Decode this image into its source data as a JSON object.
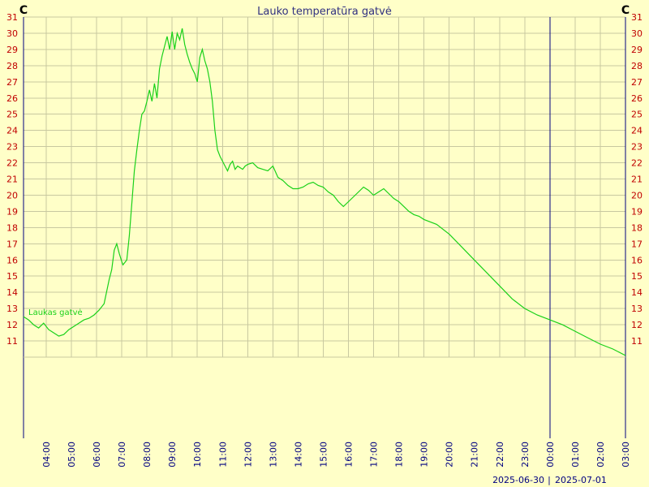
{
  "chart_data": {
    "type": "line",
    "title": "Lauko temperatūra gatvė",
    "ylabel_left": "C",
    "ylabel_right": "C",
    "xlabel": "",
    "ylim": [
      10,
      31
    ],
    "y_ticks": [
      11,
      12,
      13,
      14,
      15,
      16,
      17,
      18,
      19,
      20,
      21,
      22,
      23,
      24,
      25,
      26,
      27,
      28,
      29,
      30,
      31
    ],
    "x_range_hours": [
      3.1,
      27.0
    ],
    "x_ticks": [
      "04:00",
      "05:00",
      "06:00",
      "07:00",
      "08:00",
      "09:00",
      "10:00",
      "11:00",
      "12:00",
      "13:00",
      "14:00",
      "15:00",
      "16:00",
      "17:00",
      "18:00",
      "19:00",
      "20:00",
      "21:00",
      "22:00",
      "23:00",
      "00:00",
      "01:00",
      "02:00",
      "03:00"
    ],
    "dates": [
      "2025-06-30",
      "2025-07-01"
    ],
    "date_separator": "|",
    "day_boundary_hour": 24,
    "grid": true,
    "legend_placement": "left, inside plot",
    "colors": {
      "line": "#19d119",
      "background": "#ffffc8",
      "grid": "#c8c8a0",
      "axis": "#000080",
      "tick_labels": "#c00000"
    },
    "series": [
      {
        "name": "Laukas gatvė",
        "x": [
          3.1,
          3.3,
          3.5,
          3.7,
          3.9,
          4.1,
          4.3,
          4.5,
          4.7,
          4.9,
          5.1,
          5.3,
          5.5,
          5.7,
          5.9,
          6.1,
          6.3,
          6.5,
          6.6,
          6.7,
          6.8,
          6.9,
          7.0,
          7.05,
          7.1,
          7.2,
          7.3,
          7.4,
          7.5,
          7.6,
          7.7,
          7.8,
          7.9,
          8.0,
          8.1,
          8.2,
          8.3,
          8.4,
          8.5,
          8.6,
          8.7,
          8.8,
          8.9,
          9.0,
          9.1,
          9.2,
          9.3,
          9.4,
          9.5,
          9.6,
          9.7,
          9.8,
          9.9,
          10.0,
          10.1,
          10.2,
          10.3,
          10.4,
          10.5,
          10.6,
          10.7,
          10.8,
          10.9,
          11.0,
          11.1,
          11.2,
          11.3,
          11.4,
          11.5,
          11.6,
          11.7,
          11.8,
          11.9,
          12.0,
          12.2,
          12.4,
          12.6,
          12.8,
          13.0,
          13.2,
          13.4,
          13.6,
          13.8,
          14.0,
          14.2,
          14.4,
          14.6,
          14.8,
          15.0,
          15.2,
          15.4,
          15.6,
          15.8,
          16.0,
          16.2,
          16.4,
          16.6,
          16.8,
          17.0,
          17.2,
          17.4,
          17.6,
          17.8,
          18.0,
          18.2,
          18.4,
          18.6,
          18.8,
          19.0,
          19.5,
          20.0,
          20.5,
          21.0,
          21.5,
          22.0,
          22.5,
          23.0,
          23.5,
          24.0,
          24.5,
          25.0,
          25.5,
          26.0,
          26.5,
          27.0
        ],
        "y": [
          12.5,
          12.3,
          12.0,
          11.8,
          12.1,
          11.7,
          11.5,
          11.3,
          11.4,
          11.7,
          11.9,
          12.1,
          12.3,
          12.4,
          12.6,
          12.9,
          13.3,
          14.8,
          15.4,
          16.6,
          17.0,
          16.4,
          15.9,
          15.7,
          15.8,
          16.0,
          17.5,
          19.5,
          21.5,
          22.8,
          24.0,
          25.0,
          25.2,
          25.8,
          26.5,
          25.8,
          26.9,
          26.0,
          27.8,
          28.6,
          29.2,
          29.8,
          29.0,
          30.1,
          29.0,
          30.0,
          29.6,
          30.3,
          29.3,
          28.7,
          28.2,
          27.8,
          27.5,
          27.0,
          28.5,
          29.0,
          28.3,
          27.8,
          27.0,
          25.8,
          24.0,
          22.8,
          22.4,
          22.1,
          21.8,
          21.5,
          21.9,
          22.1,
          21.6,
          21.8,
          21.7,
          21.6,
          21.8,
          21.9,
          22.0,
          21.7,
          21.6,
          21.5,
          21.8,
          21.1,
          20.9,
          20.6,
          20.4,
          20.4,
          20.5,
          20.7,
          20.8,
          20.6,
          20.5,
          20.2,
          20.0,
          19.6,
          19.3,
          19.6,
          19.9,
          20.2,
          20.5,
          20.3,
          20.0,
          20.2,
          20.4,
          20.1,
          19.8,
          19.6,
          19.3,
          19.0,
          18.8,
          18.7,
          18.5,
          18.2,
          17.6,
          16.8,
          16.0,
          15.2,
          14.4,
          13.6,
          13.0,
          12.6,
          12.3,
          12.0,
          11.6,
          11.2,
          10.8,
          10.5,
          10.1
        ]
      }
    ]
  }
}
